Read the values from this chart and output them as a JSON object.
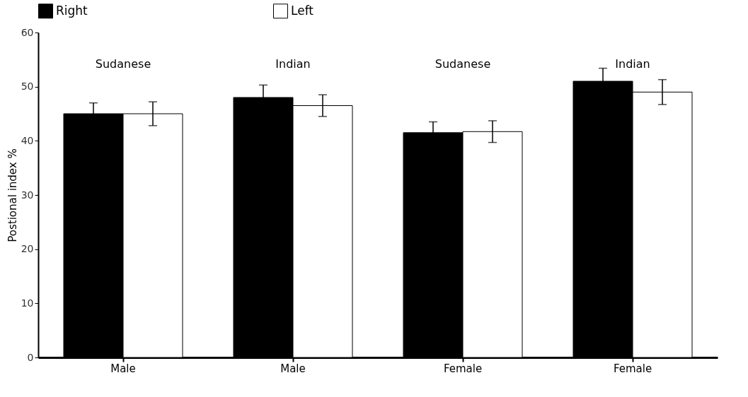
{
  "chart_data": {
    "type": "bar",
    "ylabel": "Postional index %",
    "categories": [
      "Male",
      "Male",
      "Female",
      "Female"
    ],
    "series": [
      {
        "name": "Right",
        "color": "#000000",
        "values": [
          45,
          48,
          41.5,
          51
        ],
        "errors": [
          2,
          2.3,
          2,
          2.4
        ]
      },
      {
        "name": "Left",
        "color": "#ffffff",
        "values": [
          45,
          46.5,
          41.7,
          49
        ],
        "errors": [
          2.2,
          2,
          2,
          2.3
        ]
      }
    ],
    "annotations": [
      "Sudanese",
      "Indian",
      "Sudanese",
      "Indian"
    ],
    "ylim": [
      0,
      60
    ],
    "yticks": [
      0,
      10,
      20,
      30,
      40,
      50,
      60
    ],
    "grid": false,
    "legend": "top"
  }
}
